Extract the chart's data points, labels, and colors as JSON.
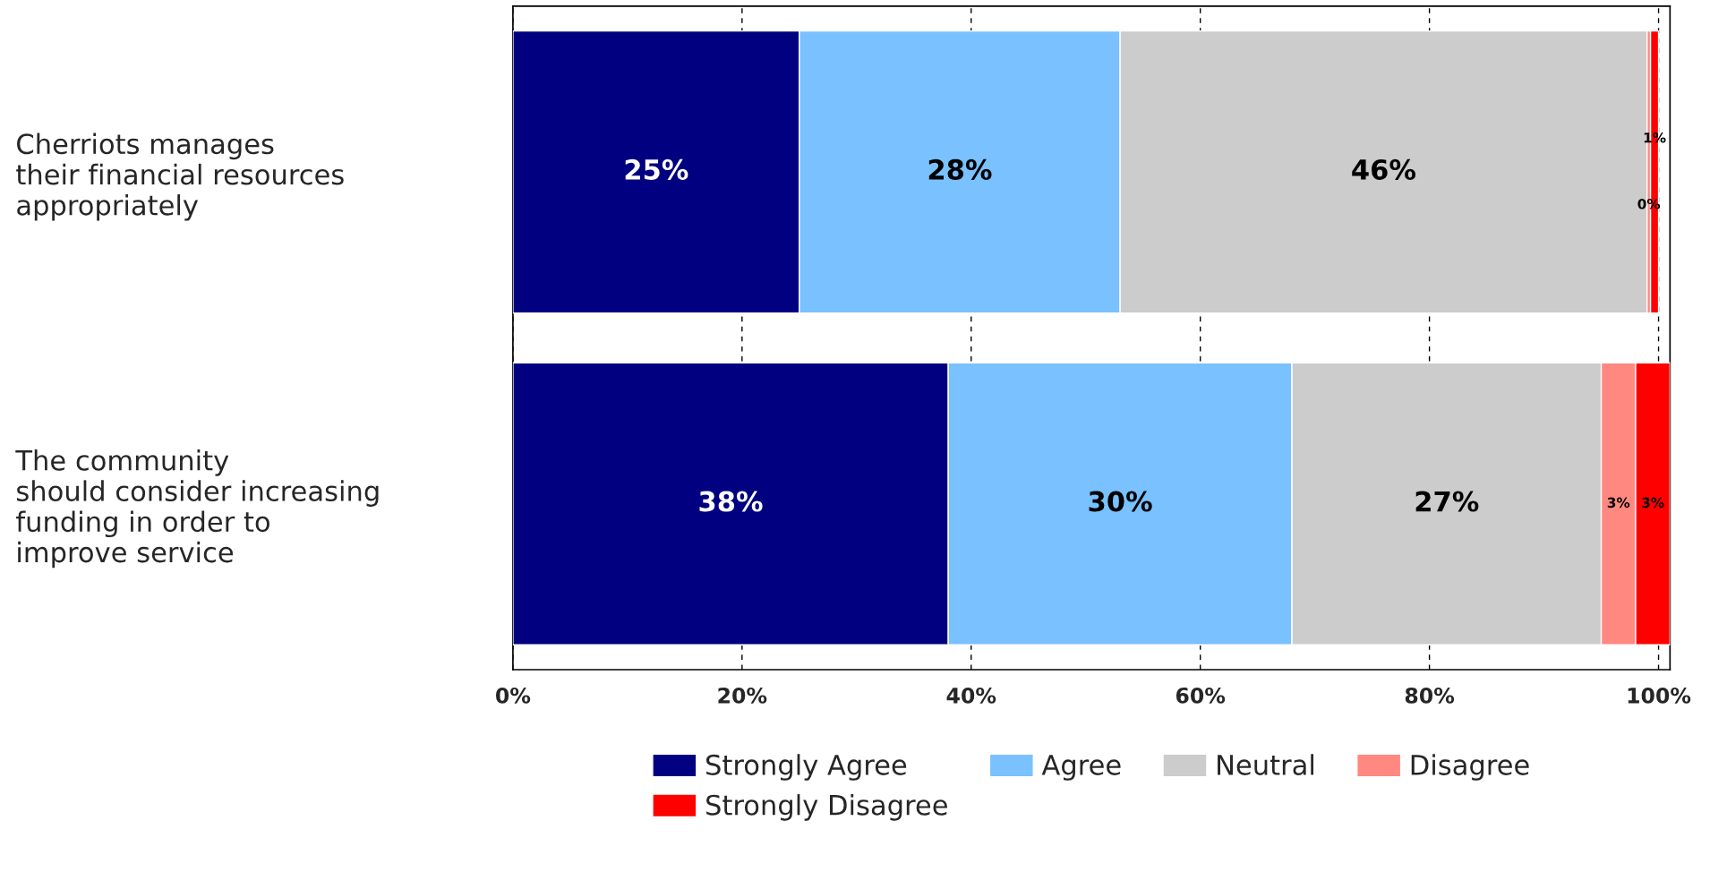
{
  "chart_data": {
    "type": "bar",
    "orientation": "horizontal",
    "stacked": true,
    "categories": [
      "Cherriots manages\ntheir financial resources\nappropriately",
      "The community\nshould consider increasing\nfunding in order to\nimprove service"
    ],
    "series": [
      {
        "name": "Strongly Agree",
        "color": "#000080",
        "values": [
          25,
          38
        ],
        "value_labels": [
          "25%",
          "38%"
        ]
      },
      {
        "name": "Agree",
        "color": "#79c1ff",
        "values": [
          28,
          30
        ],
        "value_labels": [
          "28%",
          "30%"
        ]
      },
      {
        "name": "Neutral",
        "color": "#cccccc",
        "values": [
          46,
          27
        ],
        "value_labels": [
          "46%",
          "27%"
        ]
      },
      {
        "name": "Disagree",
        "color": "#ff8880",
        "values": [
          0.3,
          3
        ],
        "value_labels": [
          "0%",
          "3%"
        ]
      },
      {
        "name": "Strongly Disagree",
        "color": "#ff0000",
        "values": [
          0.7,
          3
        ],
        "value_labels": [
          "1%",
          "3%"
        ]
      }
    ],
    "xlim": [
      0,
      101
    ],
    "xticks": [
      {
        "value": 0,
        "label": "0%"
      },
      {
        "value": 20,
        "label": "20%"
      },
      {
        "value": 40,
        "label": "40%"
      },
      {
        "value": 60,
        "label": "60%"
      },
      {
        "value": 80,
        "label": "80%"
      },
      {
        "value": 100,
        "label": "100%"
      }
    ],
    "grid": "x",
    "legend": "bottom"
  }
}
